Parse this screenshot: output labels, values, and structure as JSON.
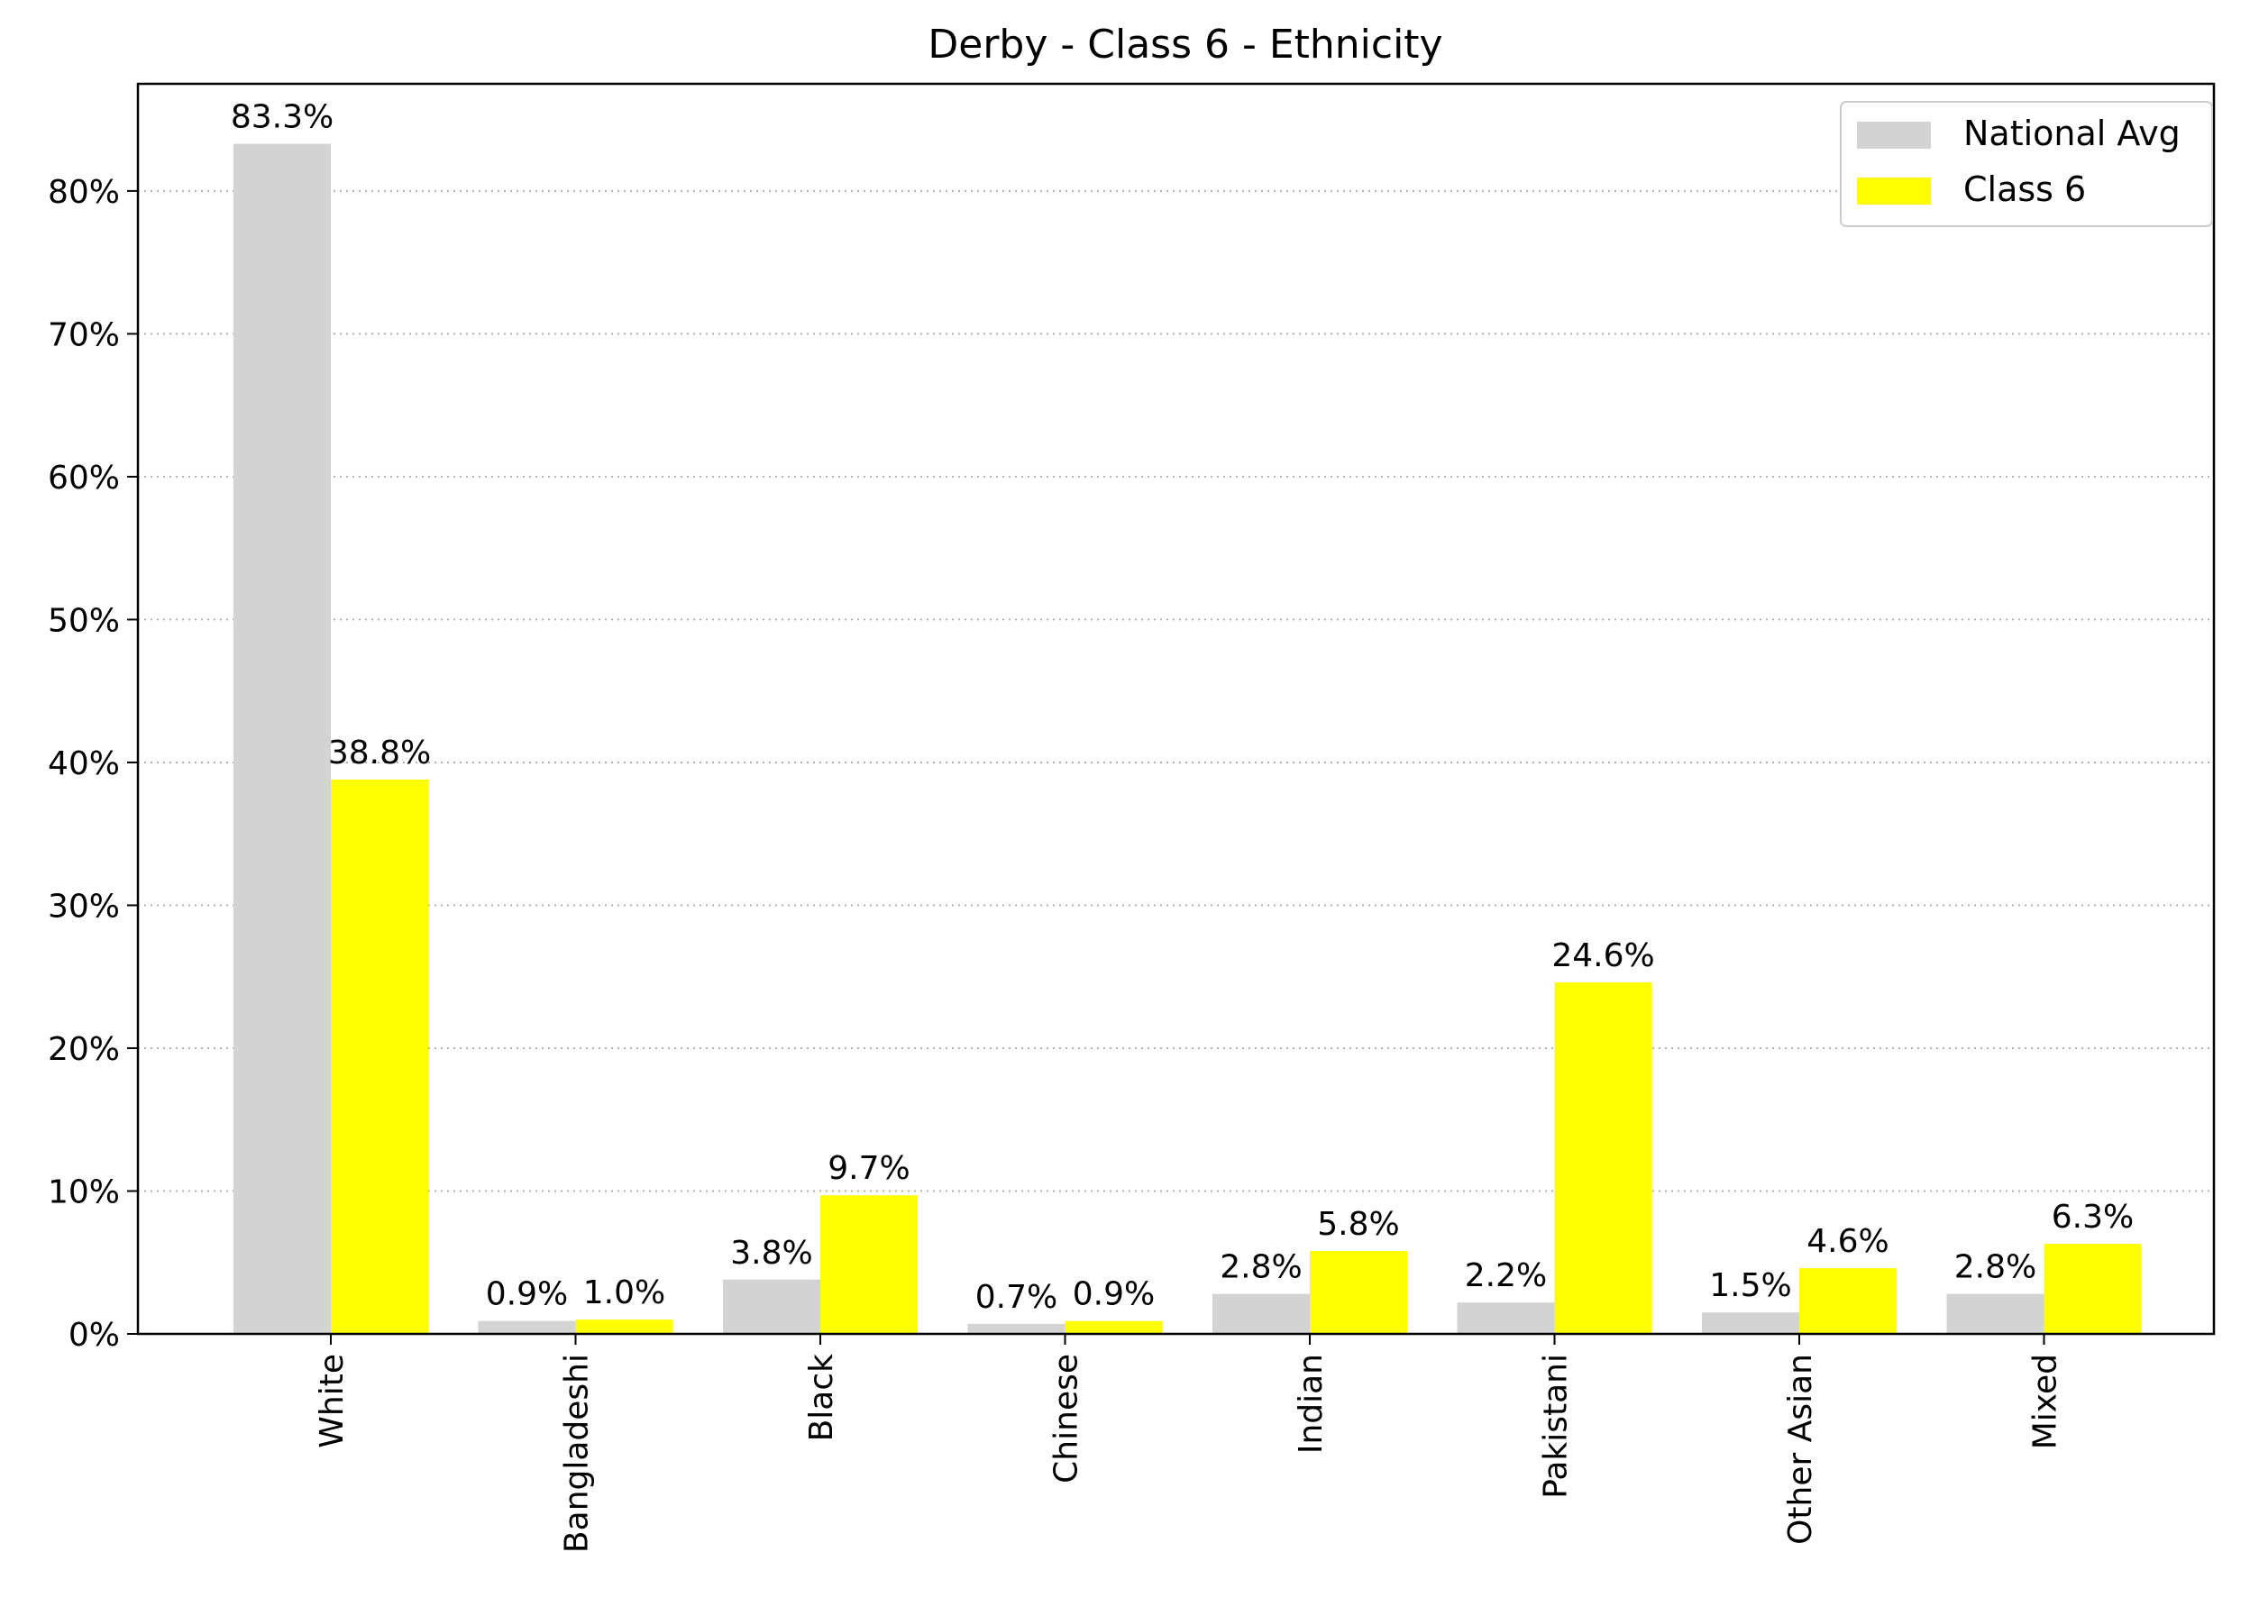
{
  "chart_data": {
    "type": "bar",
    "title": "Derby - Class 6 - Ethnicity",
    "xlabel": "",
    "ylabel": "",
    "categories": [
      "White",
      "Bangladeshi",
      "Black",
      "Chinese",
      "Indian",
      "Pakistani",
      "Other Asian",
      "Mixed"
    ],
    "series": [
      {
        "name": "National Avg",
        "color": "#d3d3d3",
        "values": [
          83.3,
          0.9,
          3.8,
          0.7,
          2.8,
          2.2,
          1.5,
          2.8
        ],
        "labels": [
          "83.3%",
          "0.9%",
          "3.8%",
          "0.7%",
          "2.8%",
          "2.2%",
          "1.5%",
          "2.8%"
        ]
      },
      {
        "name": "Class 6",
        "color": "#ffff00",
        "values": [
          38.8,
          1.0,
          9.7,
          0.9,
          5.8,
          24.6,
          4.6,
          6.3
        ],
        "labels": [
          "38.8%",
          "1.0%",
          "9.7%",
          "0.9%",
          "5.8%",
          "24.6%",
          "4.6%",
          "6.3%"
        ]
      }
    ],
    "ylim": [
      0,
      87.5
    ],
    "yticks": [
      0,
      10,
      20,
      30,
      40,
      50,
      60,
      70,
      80
    ],
    "ytick_labels": [
      "0%",
      "10%",
      "20%",
      "30%",
      "40%",
      "50%",
      "60%",
      "70%",
      "80%"
    ],
    "grid": "y-dotted",
    "legend_position": "top-right"
  }
}
